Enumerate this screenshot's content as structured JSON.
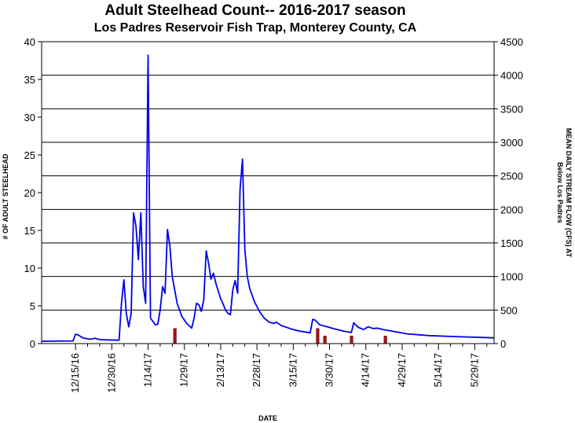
{
  "chart_data": {
    "type": "bar+line",
    "title": "Adult Steelhead Count-- 2016-2017 season",
    "subtitle": "Los Padres Reservoir Fish Trap, Monterey County, CA",
    "xlabel": "DATE",
    "ylabel_left": "# OF ADULT STEELHEAD",
    "ylabel_right_line1": "MEAN DAILY STREAM FLOW (CFS) AT",
    "ylabel_right_line2": "Below Los Padres",
    "x_start": "2016-12-01",
    "x_end": "2017-06-06",
    "x_ticks": [
      {
        "date": "2016-12-15",
        "label": "12/15/16"
      },
      {
        "date": "2016-12-30",
        "label": "12/30/16"
      },
      {
        "date": "2017-01-14",
        "label": "1/14/17"
      },
      {
        "date": "2017-01-29",
        "label": "1/29/17"
      },
      {
        "date": "2017-02-13",
        "label": "2/13/17"
      },
      {
        "date": "2017-02-28",
        "label": "2/28/17"
      },
      {
        "date": "2017-03-15",
        "label": "3/15/17"
      },
      {
        "date": "2017-03-30",
        "label": "3/30/17"
      },
      {
        "date": "2017-04-14",
        "label": "4/14/17"
      },
      {
        "date": "2017-04-29",
        "label": "4/29/17"
      },
      {
        "date": "2017-05-14",
        "label": "5/14/17"
      },
      {
        "date": "2017-05-29",
        "label": "5/29/17"
      }
    ],
    "y_left": {
      "min": 0,
      "max": 40,
      "ticks": [
        0,
        5,
        10,
        15,
        20,
        25,
        30,
        35,
        40
      ]
    },
    "y_right": {
      "min": 0,
      "max": 4500,
      "ticks": [
        0,
        500,
        1000,
        1500,
        2000,
        2500,
        3000,
        3500,
        4000,
        4500
      ]
    },
    "gridlines_right_axis": true,
    "bars": {
      "axis": "left",
      "color": "#b01010",
      "points": [
        {
          "date": "2017-01-25",
          "value": 2
        },
        {
          "date": "2017-03-25",
          "value": 2
        },
        {
          "date": "2017-03-28",
          "value": 1
        },
        {
          "date": "2017-04-08",
          "value": 1
        },
        {
          "date": "2017-04-22",
          "value": 1
        }
      ]
    },
    "flow": {
      "axis": "right",
      "color": "#0000ee",
      "points": [
        {
          "date": "2016-12-01",
          "value": 35
        },
        {
          "date": "2016-12-14",
          "value": 40
        },
        {
          "date": "2016-12-15",
          "value": 140
        },
        {
          "date": "2016-12-16",
          "value": 130
        },
        {
          "date": "2016-12-18",
          "value": 85
        },
        {
          "date": "2016-12-21",
          "value": 65
        },
        {
          "date": "2016-12-23",
          "value": 80
        },
        {
          "date": "2016-12-25",
          "value": 60
        },
        {
          "date": "2016-12-28",
          "value": 55
        },
        {
          "date": "2017-01-02",
          "value": 50
        },
        {
          "date": "2017-01-03",
          "value": 600
        },
        {
          "date": "2017-01-04",
          "value": 950
        },
        {
          "date": "2017-01-05",
          "value": 450
        },
        {
          "date": "2017-01-06",
          "value": 250
        },
        {
          "date": "2017-01-07",
          "value": 450
        },
        {
          "date": "2017-01-08",
          "value": 1950
        },
        {
          "date": "2017-01-09",
          "value": 1750
        },
        {
          "date": "2017-01-10",
          "value": 1250
        },
        {
          "date": "2017-01-11",
          "value": 1950
        },
        {
          "date": "2017-01-12",
          "value": 850
        },
        {
          "date": "2017-01-13",
          "value": 600
        },
        {
          "date": "2017-01-14",
          "value": 4300
        },
        {
          "date": "2017-01-15",
          "value": 380
        },
        {
          "date": "2017-01-17",
          "value": 280
        },
        {
          "date": "2017-01-18",
          "value": 290
        },
        {
          "date": "2017-01-19",
          "value": 500
        },
        {
          "date": "2017-01-20",
          "value": 850
        },
        {
          "date": "2017-01-21",
          "value": 750
        },
        {
          "date": "2017-01-22",
          "value": 1700
        },
        {
          "date": "2017-01-23",
          "value": 1450
        },
        {
          "date": "2017-01-24",
          "value": 1000
        },
        {
          "date": "2017-01-25",
          "value": 800
        },
        {
          "date": "2017-01-26",
          "value": 600
        },
        {
          "date": "2017-01-28",
          "value": 400
        },
        {
          "date": "2017-01-30",
          "value": 300
        },
        {
          "date": "2017-02-01",
          "value": 230
        },
        {
          "date": "2017-02-02",
          "value": 380
        },
        {
          "date": "2017-02-03",
          "value": 600
        },
        {
          "date": "2017-02-04",
          "value": 580
        },
        {
          "date": "2017-02-05",
          "value": 480
        },
        {
          "date": "2017-02-06",
          "value": 650
        },
        {
          "date": "2017-02-07",
          "value": 1380
        },
        {
          "date": "2017-02-08",
          "value": 1200
        },
        {
          "date": "2017-02-09",
          "value": 960
        },
        {
          "date": "2017-02-10",
          "value": 1050
        },
        {
          "date": "2017-02-11",
          "value": 900
        },
        {
          "date": "2017-02-12",
          "value": 780
        },
        {
          "date": "2017-02-13",
          "value": 670
        },
        {
          "date": "2017-02-14",
          "value": 590
        },
        {
          "date": "2017-02-15",
          "value": 500
        },
        {
          "date": "2017-02-16",
          "value": 450
        },
        {
          "date": "2017-02-17",
          "value": 430
        },
        {
          "date": "2017-02-18",
          "value": 800
        },
        {
          "date": "2017-02-19",
          "value": 940
        },
        {
          "date": "2017-02-20",
          "value": 750
        },
        {
          "date": "2017-02-21",
          "value": 2300
        },
        {
          "date": "2017-02-22",
          "value": 2750
        },
        {
          "date": "2017-02-23",
          "value": 1400
        },
        {
          "date": "2017-02-24",
          "value": 1000
        },
        {
          "date": "2017-02-25",
          "value": 820
        },
        {
          "date": "2017-02-27",
          "value": 620
        },
        {
          "date": "2017-03-01",
          "value": 480
        },
        {
          "date": "2017-03-03",
          "value": 380
        },
        {
          "date": "2017-03-05",
          "value": 320
        },
        {
          "date": "2017-03-07",
          "value": 300
        },
        {
          "date": "2017-03-08",
          "value": 320
        },
        {
          "date": "2017-03-10",
          "value": 270
        },
        {
          "date": "2017-03-14",
          "value": 220
        },
        {
          "date": "2017-03-17",
          "value": 190
        },
        {
          "date": "2017-03-22",
          "value": 160
        },
        {
          "date": "2017-03-23",
          "value": 360
        },
        {
          "date": "2017-03-24",
          "value": 350
        },
        {
          "date": "2017-03-26",
          "value": 280
        },
        {
          "date": "2017-03-28",
          "value": 260
        },
        {
          "date": "2017-04-01",
          "value": 220
        },
        {
          "date": "2017-04-05",
          "value": 185
        },
        {
          "date": "2017-04-08",
          "value": 165
        },
        {
          "date": "2017-04-09",
          "value": 310
        },
        {
          "date": "2017-04-10",
          "value": 270
        },
        {
          "date": "2017-04-11",
          "value": 240
        },
        {
          "date": "2017-04-13",
          "value": 210
        },
        {
          "date": "2017-04-15",
          "value": 250
        },
        {
          "date": "2017-04-17",
          "value": 225
        },
        {
          "date": "2017-04-19",
          "value": 230
        },
        {
          "date": "2017-04-21",
          "value": 210
        },
        {
          "date": "2017-04-25",
          "value": 185
        },
        {
          "date": "2017-05-01",
          "value": 145
        },
        {
          "date": "2017-05-10",
          "value": 120
        },
        {
          "date": "2017-05-20",
          "value": 105
        },
        {
          "date": "2017-06-06",
          "value": 85
        }
      ]
    }
  }
}
